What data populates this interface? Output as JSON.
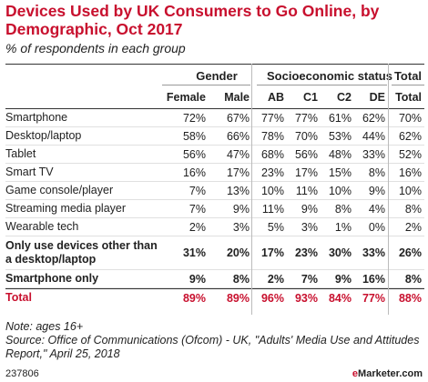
{
  "title": "Devices Used by UK Consumers to Go Online, by Demographic, Oct 2017",
  "subtitle": "% of respondents in each group",
  "group_headers": {
    "gender": "Gender",
    "socio": "Socioeconomic status",
    "total": "Total"
  },
  "chart_data": {
    "type": "table",
    "title": "Devices Used by UK Consumers to Go Online, by Demographic, Oct 2017",
    "subtitle": "% of respondents in each group",
    "columns": [
      "Female",
      "Male",
      "AB",
      "C1",
      "C2",
      "DE",
      "Total"
    ],
    "rows": [
      {
        "label": "Smartphone",
        "values": [
          "72%",
          "67%",
          "77%",
          "77%",
          "61%",
          "62%",
          "70%"
        ]
      },
      {
        "label": "Desktop/laptop",
        "values": [
          "58%",
          "66%",
          "78%",
          "70%",
          "53%",
          "44%",
          "62%"
        ]
      },
      {
        "label": "Tablet",
        "values": [
          "56%",
          "47%",
          "68%",
          "56%",
          "48%",
          "33%",
          "52%"
        ]
      },
      {
        "label": "Smart TV",
        "values": [
          "16%",
          "17%",
          "23%",
          "17%",
          "15%",
          "8%",
          "16%"
        ]
      },
      {
        "label": "Game console/player",
        "values": [
          "7%",
          "13%",
          "10%",
          "11%",
          "10%",
          "9%",
          "10%"
        ]
      },
      {
        "label": "Streaming media player",
        "values": [
          "7%",
          "9%",
          "11%",
          "9%",
          "8%",
          "4%",
          "8%"
        ]
      },
      {
        "label": "Wearable tech",
        "values": [
          "2%",
          "3%",
          "5%",
          "3%",
          "1%",
          "0%",
          "2%"
        ]
      },
      {
        "label": "Only use devices other than a desktop/laptop",
        "values": [
          "31%",
          "20%",
          "17%",
          "23%",
          "30%",
          "33%",
          "26%"
        ]
      },
      {
        "label": "Smartphone only",
        "values": [
          "9%",
          "8%",
          "2%",
          "7%",
          "9%",
          "16%",
          "8%"
        ]
      },
      {
        "label": "Total",
        "values": [
          "89%",
          "89%",
          "96%",
          "93%",
          "84%",
          "77%",
          "88%"
        ]
      }
    ]
  },
  "notes": {
    "note": "Note: ages 16+",
    "source": "Source: Office of Communications (Ofcom) - UK, \"Adults' Media Use and Attitudes Report,\" April 25, 2018"
  },
  "footer": {
    "id": "237806",
    "brand_prefix": "e",
    "brand_rest": "Marketer",
    "brand_suffix": ".com"
  },
  "colors": {
    "accent": "#c8102e",
    "text": "#222222",
    "rule": "#333333"
  }
}
